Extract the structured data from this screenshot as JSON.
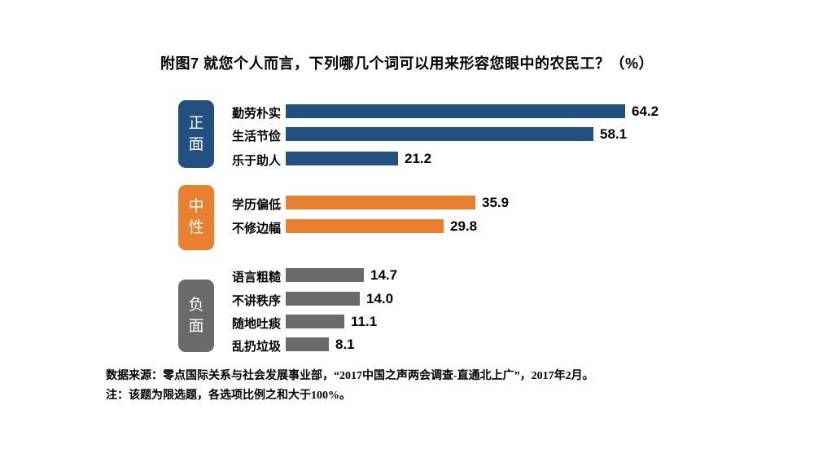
{
  "title": "附图7 就您个人而言，下列哪几个词可以用来形容您眼中的农民工？（%）",
  "chart_data": {
    "type": "bar",
    "orientation": "horizontal",
    "unit": "%",
    "title": "附图7 就您个人而言，下列哪几个词可以用来形容您眼中的农民工？（%）",
    "xlim": [
      0,
      70
    ],
    "grid": false,
    "legend": false,
    "groups": [
      {
        "label": "正面",
        "color": "#215081",
        "items": [
          {
            "label": "勤劳朴实",
            "value": 64.2
          },
          {
            "label": "生活节俭",
            "value": 58.1
          },
          {
            "label": "乐于助人",
            "value": 21.2
          }
        ]
      },
      {
        "label": "中性",
        "color": "#E9802F",
        "items": [
          {
            "label": "学历偏低",
            "value": 35.9
          },
          {
            "label": "不修边幅",
            "value": 29.8
          }
        ]
      },
      {
        "label": "负面",
        "color": "#6A6A6A",
        "items": [
          {
            "label": "语言粗糙",
            "value": 14.7
          },
          {
            "label": "不讲秩序",
            "value": 14.0
          },
          {
            "label": "随地吐痰",
            "value": 11.1
          },
          {
            "label": "乱扔垃圾",
            "value": 8.1
          }
        ]
      }
    ]
  },
  "footnotes": {
    "line1": "数据来源：零点国际关系与社会发展事业部，“2017中国之声两会调查-直通北上广”，2017年2月。",
    "line2": "注：该题为限选题，各选项比例之和大于100%。"
  }
}
